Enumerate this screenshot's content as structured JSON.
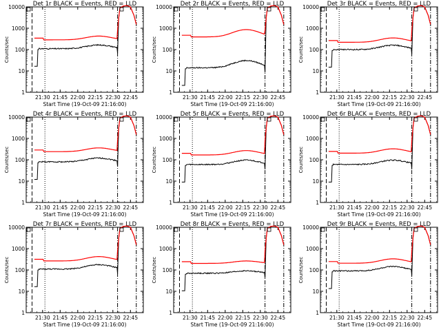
{
  "chart_data": {
    "type": "line",
    "ylabel": "Counts/sec",
    "xlabel": "Start Time (19-Oct-09 21:16:00)",
    "y_scale": "log",
    "ylim": [
      1,
      10000
    ],
    "y_tick_labels": [
      "1",
      "10",
      "100",
      "1000",
      "10000"
    ],
    "x_tick_labels": [
      "21:30",
      "21:45",
      "22:00",
      "22:15",
      "22:30",
      "22:45"
    ],
    "series_colors": {
      "black": "#000000",
      "red": "#ff0000"
    },
    "panels": [
      {
        "title": "Det 1r BLACK = Events, RED = LLD",
        "black_level": 110,
        "red_ratio": 2.6,
        "bump": 1.5
      },
      {
        "title": "Det 2r BLACK = Events, RED = LLD",
        "black_level": 14,
        "red_ratio": 28,
        "bump": 2.2
      },
      {
        "title": "Det 3r BLACK = Events, RED = LLD",
        "black_level": 100,
        "red_ratio": 2.2,
        "bump": 1.6
      },
      {
        "title": "Det 4r BLACK = Events, RED = LLD",
        "black_level": 80,
        "red_ratio": 3.0,
        "bump": 1.5
      },
      {
        "title": "Det 5r BLACK = Events, RED = LLD",
        "black_level": 60,
        "red_ratio": 2.8,
        "bump": 1.6
      },
      {
        "title": "Det 6r BLACK = Events, RED = LLD",
        "black_level": 60,
        "red_ratio": 3.4,
        "bump": 1.6
      },
      {
        "title": "Det 7r BLACK = Events, RED = LLD",
        "black_level": 110,
        "red_ratio": 2.4,
        "bump": 1.6
      },
      {
        "title": "Det 8r BLACK = Events, RED = LLD",
        "black_level": 70,
        "red_ratio": 2.9,
        "bump": 1.3
      },
      {
        "title": "Det 9r BLACK = Events, RED = LLD",
        "black_level": 90,
        "red_ratio": 2.3,
        "bump": 1.6
      }
    ]
  }
}
